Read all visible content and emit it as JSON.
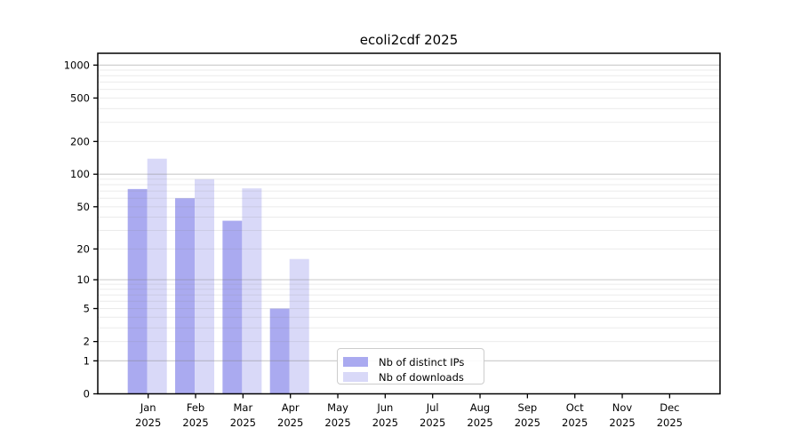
{
  "chart_data": {
    "type": "bar",
    "title": "ecoli2cdf 2025",
    "categories": [
      "Jan",
      "Feb",
      "Mar",
      "Apr",
      "May",
      "Jun",
      "Jul",
      "Aug",
      "Sep",
      "Oct",
      "Nov",
      "Dec"
    ],
    "year_label": "2025",
    "series": [
      {
        "name": "Nb of distinct IPs",
        "color": "#aaaaf0",
        "values": [
          73,
          60,
          37,
          5,
          null,
          null,
          null,
          null,
          null,
          null,
          null,
          null
        ]
      },
      {
        "name": "Nb of downloads",
        "color": "#d9d9f8",
        "values": [
          139,
          90,
          74,
          16,
          null,
          null,
          null,
          null,
          null,
          null,
          null,
          null
        ]
      }
    ],
    "y_ticks": [
      0,
      1,
      2,
      5,
      10,
      20,
      50,
      100,
      200,
      500,
      1000
    ],
    "y_scale": "log10(value+1)",
    "ylim": [
      0,
      1250
    ],
    "grid": "horizontal minor lines each log step, darker lines at powers of 10",
    "legend_position": "inside-bottom-center",
    "colors": {
      "grid_minor": "rgba(128,128,128,0.16)",
      "grid_major": "rgba(128,128,128,0.42)",
      "axis": "#000000",
      "text": "#000000"
    }
  }
}
